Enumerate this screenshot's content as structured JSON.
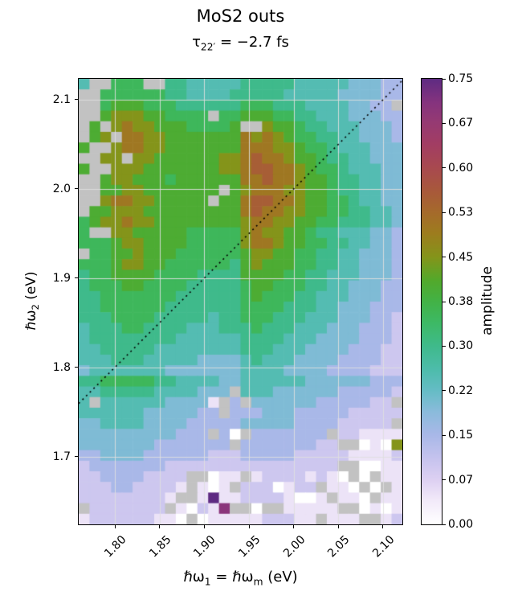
{
  "labels": {
    "title": "MoS2 outs",
    "subtitle_tau": "τ",
    "subtitle_sub": "22′",
    "subtitle_rest": " = −2.7 fs",
    "xlabel_p1": "ℏω",
    "xlabel_sub1": "1",
    "xlabel_p2": " = ℏω",
    "xlabel_sub2": "m",
    "xlabel_p3": " (eV)",
    "ylabel_p1": "ℏω",
    "ylabel_sub": "2",
    "ylabel_p2": " (eV)",
    "colorbar_label": "amplitude"
  },
  "chart_data": {
    "type": "heatmap",
    "title": "MoS2 outs",
    "subtitle": "τ22′ = −2.7 fs",
    "xlabel": "ℏω1 = ℏωm (eV)",
    "ylabel": "ℏω2 (eV)",
    "x_range": [
      1.7595,
      2.1216
    ],
    "y_range": [
      1.624,
      2.1234
    ],
    "x_tick_values": [
      1.8,
      1.85,
      1.9,
      1.95,
      2.0,
      2.05,
      2.1
    ],
    "x_tick_labels": [
      "1.80",
      "1.85",
      "1.90",
      "1.95",
      "2.00",
      "2.05",
      "2.10"
    ],
    "y_tick_values": [
      1.7,
      1.8,
      1.9,
      2.0,
      2.1
    ],
    "y_tick_labels": [
      "1.7",
      "1.8",
      "1.9",
      "2.0",
      "2.1"
    ],
    "grid_lines": true,
    "grid_line_color": "#dfdfdf",
    "diagonal_line": {
      "type": "y=x",
      "style": "dotted",
      "color": "#000000"
    },
    "colorbar": {
      "label": "amplitude",
      "vmin": 0.0,
      "vmax": 0.75,
      "tick_labels": [
        "0.00",
        "0.07",
        "0.15",
        "0.22",
        "0.30",
        "0.38",
        "0.45",
        "0.53",
        "0.60",
        "0.67",
        "0.75"
      ],
      "tick_values": [
        0.0,
        0.075,
        0.15,
        0.225,
        0.3,
        0.375,
        0.45,
        0.525,
        0.6,
        0.675,
        0.75
      ]
    },
    "ncols": 30,
    "nrows": 42,
    "cell_encoding": {
      "chars": "0123456789abcdef",
      "step": 0.05,
      "nan_char": "x",
      "note": "amplitude = hex_index × 0.05; x = masked cell (gray)"
    },
    "nan_color": "#c2c2c2",
    "colormap_stops": [
      [
        0.0,
        "#ffffff"
      ],
      [
        0.04,
        "#f2eaf9"
      ],
      [
        0.075,
        "#ddd0f2"
      ],
      [
        0.11,
        "#c6c3ee"
      ],
      [
        0.15,
        "#a9b8e8"
      ],
      [
        0.19,
        "#8abbdb"
      ],
      [
        0.225,
        "#65bcc5"
      ],
      [
        0.26,
        "#4dbcab"
      ],
      [
        0.3,
        "#3fba8b"
      ],
      [
        0.34,
        "#3db964"
      ],
      [
        0.375,
        "#42b246"
      ],
      [
        0.41,
        "#52a92b"
      ],
      [
        0.45,
        "#84941a"
      ],
      [
        0.49,
        "#9d7c1e"
      ],
      [
        0.525,
        "#a56a2b"
      ],
      [
        0.56,
        "#a8593a"
      ],
      [
        0.6,
        "#a8494f"
      ],
      [
        0.64,
        "#a23d63"
      ],
      [
        0.675,
        "#963a72"
      ],
      [
        0.71,
        "#85337e"
      ],
      [
        0.75,
        "#5e2b82"
      ]
    ],
    "grid": [
      "5xx777xx6655555666665555544433",
      "xx7777776655556666655555444433",
      "xx788877766666677766655554433x",
      "xx8999887777x77888776655544433",
      "x8x9a9988877778xx9887665554443",
      "x89xaa998888888a9a987766554443",
      "8xx9aa998888888aaa998776555444",
      "xx99x9988888899abaa98876655444",
      "8xx999888888899abbaa9877655544",
      "xx8998887888888aabaa9887665544",
      "xx88998888888x89aaa99887665544",
      "xx9aa9988888x88abbaa9887765544",
      "x88999888888888abaa99887766554",
      "7899a99888888889aa998877666554",
      "7xx9988888777779a9988766555443",
      "7778998888777779aa988776655443",
      "x77889888777777899887766554443",
      "777899887777776898887766554443",
      "677888877776666888877665554443",
      "677788777766666788777665544433",
      "667777777666666787776655544433",
      "667777776666666777766655444333",
      "666777766666566777666555444332",
      "566677666655566676665554443332",
      "566666666555555666655544443332",
      "556666655555555666555444433322",
      "555666555554444565554444333322",
      "455555554444444555544443333222",
      "667777766555544555555444444333",
      "55666665555444x555444444333332",
      "5x55555544441x3x4444443333322x",
      "5555554444433x3334443333322222",
      "44555544443333344444333322222x",
      "444444444333x30x3333333x221111",
      "44444443333333x333333322xx0109",
      "334444333333222333332222211112",
      "233333332222222222222222xx0011",
      "2233332222xx011x122221210x0x11",
      "2223322221x101x2220122x110x0x1",
      "222222221xx1f1122221001x110x11",
      "x2222222x1021exx0xx11111xx0101",
      "1222222110x01111122211x111xx12"
    ]
  }
}
